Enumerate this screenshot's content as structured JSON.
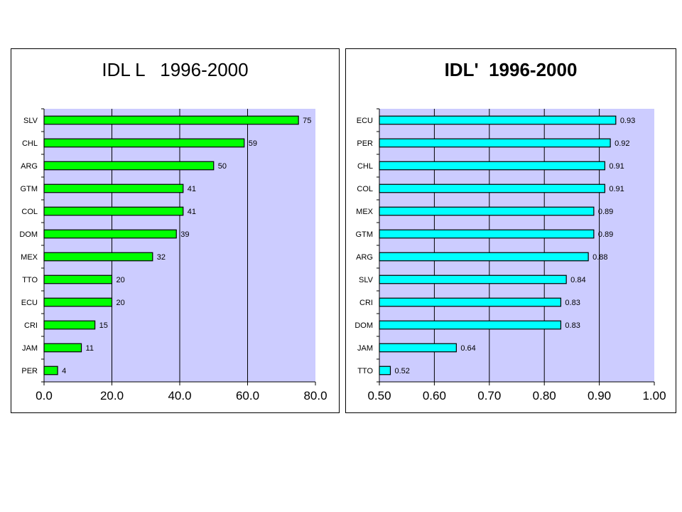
{
  "chart_data": [
    {
      "type": "bar",
      "orientation": "horizontal",
      "title": "IDL L   1996-2000",
      "categories": [
        "SLV",
        "CHL",
        "ARG",
        "GTM",
        "COL",
        "DOM",
        "MEX",
        "TTO",
        "ECU",
        "CRI",
        "JAM",
        "PER"
      ],
      "values": [
        75,
        59,
        50,
        41,
        41,
        39,
        32,
        20,
        20,
        15,
        11,
        4
      ],
      "value_labels": [
        "75",
        "59",
        "50",
        "41",
        "41",
        "39",
        "32",
        "20",
        "20",
        "15",
        "11",
        "4"
      ],
      "xlim": [
        0,
        80
      ],
      "xticks": [
        "0.0",
        "20.0",
        "40.0",
        "60.0",
        "80.0"
      ],
      "bar_color": "#00ff00",
      "plot_background": "#ccccff",
      "grid": true
    },
    {
      "type": "bar",
      "orientation": "horizontal",
      "title": "IDL'  1996-2000",
      "categories": [
        "ECU",
        "PER",
        "CHL",
        "COL",
        "MEX",
        "GTM",
        "ARG",
        "SLV",
        "CRI",
        "DOM",
        "JAM",
        "TTO"
      ],
      "values": [
        0.93,
        0.92,
        0.91,
        0.91,
        0.89,
        0.89,
        0.88,
        0.84,
        0.83,
        0.83,
        0.64,
        0.52
      ],
      "value_labels": [
        "0.93",
        "0.92",
        "0.91",
        "0.91",
        "0.89",
        "0.89",
        "0.88",
        "0.84",
        "0.83",
        "0.83",
        "0.64",
        "0.52"
      ],
      "xlim": [
        0.5,
        1.0
      ],
      "xticks": [
        "0.50",
        "0.60",
        "0.70",
        "0.80",
        "0.90",
        "1.00"
      ],
      "bar_color": "#00ffff",
      "plot_background": "#ccccff",
      "grid": true
    }
  ]
}
